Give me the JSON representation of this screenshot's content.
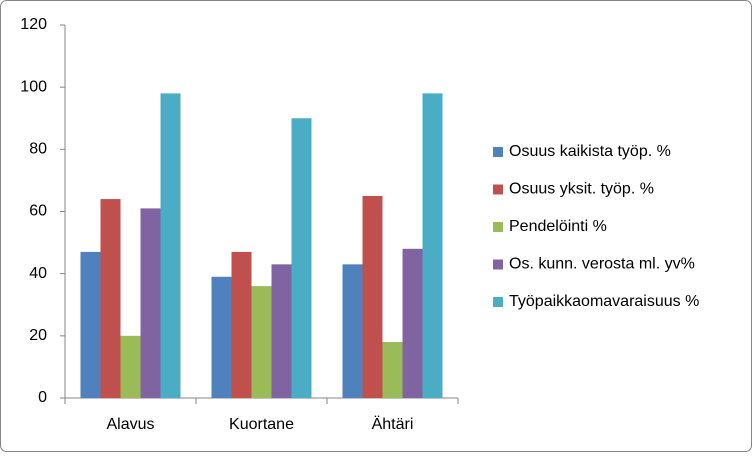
{
  "chart_data": {
    "type": "bar",
    "categories": [
      "Alavus",
      "Kuortane",
      "Ähtäri"
    ],
    "series": [
      {
        "name": "Osuus kaikista työp. %",
        "color": "#4f81bd",
        "values": [
          47,
          39,
          43
        ]
      },
      {
        "name": "Osuus yksit. työp. %",
        "color": "#c0504d",
        "values": [
          64,
          47,
          65
        ]
      },
      {
        "name": "Pendelöinti %",
        "color": "#9bbb59",
        "values": [
          20,
          36,
          18
        ]
      },
      {
        "name": "Os. kunn. verosta ml. yv%",
        "color": "#8064a2",
        "values": [
          61,
          43,
          48
        ]
      },
      {
        "name": "Työpaikkaomavaraisuus %",
        "color": "#4bacc6",
        "values": [
          98,
          90,
          98
        ]
      }
    ],
    "ylim": [
      0,
      120
    ],
    "yticks": [
      0,
      20,
      40,
      60,
      80,
      100,
      120
    ],
    "grid": false,
    "legend": "right"
  }
}
